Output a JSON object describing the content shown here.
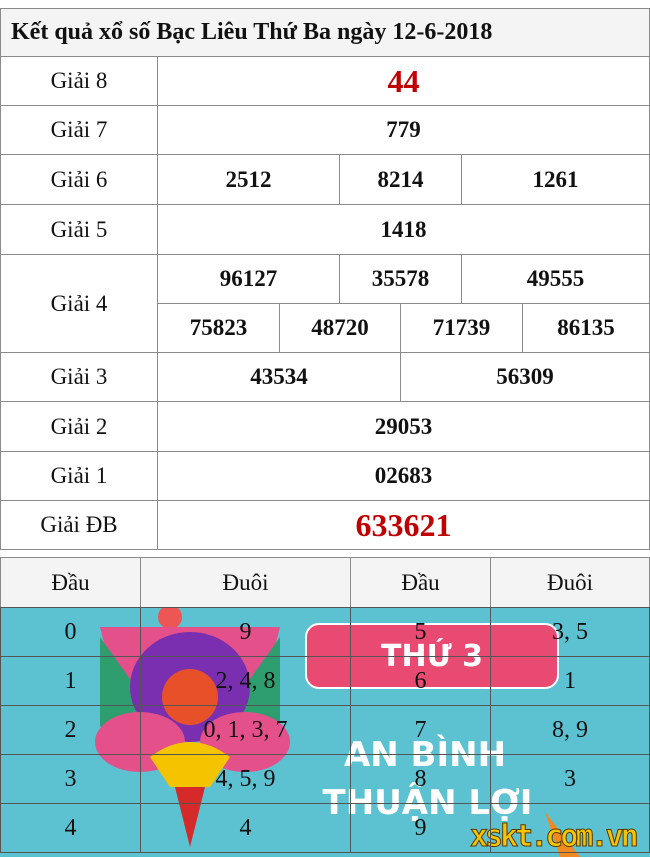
{
  "title": "Kết quả xổ số Bạc Liêu Thứ Ba ngày 12-6-2018",
  "prizes": {
    "g8": {
      "label": "Giải 8",
      "values": [
        "44"
      ]
    },
    "g7": {
      "label": "Giải 7",
      "values": [
        "779"
      ]
    },
    "g6": {
      "label": "Giải 6",
      "values": [
        "2512",
        "8214",
        "1261"
      ]
    },
    "g5": {
      "label": "Giải 5",
      "values": [
        "1418"
      ]
    },
    "g4": {
      "label": "Giải 4",
      "values": [
        "96127",
        "35578",
        "49555",
        "75823",
        "48720",
        "71739",
        "86135"
      ]
    },
    "g3": {
      "label": "Giải 3",
      "values": [
        "43534",
        "56309"
      ]
    },
    "g2": {
      "label": "Giải 2",
      "values": [
        "29053"
      ]
    },
    "g1": {
      "label": "Giải 1",
      "values": [
        "02683"
      ]
    },
    "db": {
      "label": "Giải ĐB",
      "values": [
        "633621"
      ]
    }
  },
  "loto": {
    "headers": [
      "Đầu",
      "Đuôi",
      "Đầu",
      "Đuôi"
    ],
    "rows": [
      [
        "0",
        "9",
        "5",
        "3, 5"
      ],
      [
        "1",
        "2, 4, 8",
        "6",
        "1"
      ],
      [
        "2",
        "0, 1, 3, 7",
        "7",
        "8, 9"
      ],
      [
        "3",
        "4, 5, 9",
        "8",
        "3"
      ],
      [
        "4",
        "4",
        "9",
        ""
      ]
    ]
  },
  "banner": {
    "badge": "THỨ 3",
    "slogan1": "AN BÌNH",
    "slogan2": "THUẬN LỢI",
    "brand": "xskt.com.vn"
  },
  "colors": {
    "accent_red": "#c00000",
    "banner_bg": "#5cc1d0",
    "badge": "#e84a72"
  }
}
